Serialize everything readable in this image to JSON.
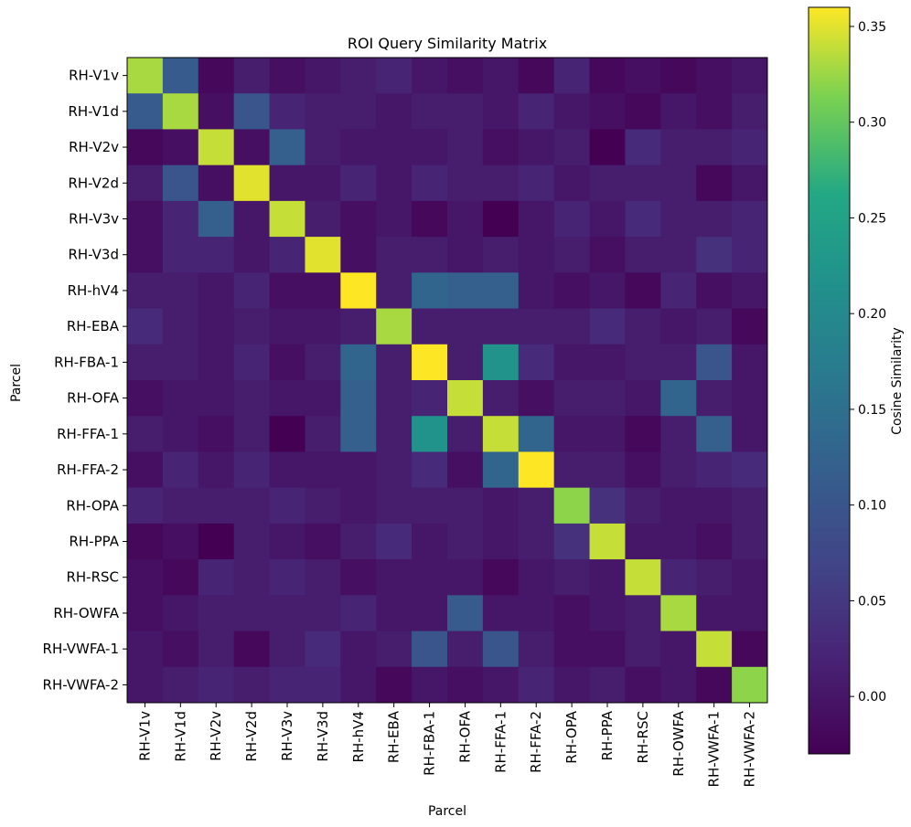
{
  "chart_data": {
    "type": "heatmap",
    "title": "ROI Query Similarity Matrix",
    "xlabel": "Parcel",
    "ylabel": "Parcel",
    "colorbar_label": "Cosine Similarity",
    "colormap": "viridis",
    "vmin": -0.03,
    "vmax": 0.36,
    "colorbar_ticks": [
      0.0,
      0.05,
      0.1,
      0.15,
      0.2,
      0.25,
      0.3,
      0.35
    ],
    "colorbar_tick_labels": [
      "0.00",
      "0.05",
      "0.10",
      "0.15",
      "0.20",
      "0.25",
      "0.30",
      "0.35"
    ],
    "labels": [
      "RH-V1v",
      "RH-V1d",
      "RH-V2v",
      "RH-V2d",
      "RH-V3v",
      "RH-V3d",
      "RH-hV4",
      "RH-EBA",
      "RH-FBA-1",
      "RH-OFA",
      "RH-FFA-1",
      "RH-FFA-2",
      "RH-OPA",
      "RH-PPA",
      "RH-RSC",
      "RH-OWFA",
      "RH-VWFA-1",
      "RH-VWFA-2"
    ],
    "matrix": [
      [
        0.33,
        0.11,
        -0.02,
        0.01,
        -0.01,
        0.0,
        0.01,
        0.02,
        0.0,
        -0.01,
        0.0,
        -0.02,
        0.02,
        -0.02,
        -0.01,
        -0.02,
        -0.01,
        0.0
      ],
      [
        0.11,
        0.33,
        -0.01,
        0.1,
        0.02,
        0.01,
        0.01,
        0.0,
        0.01,
        0.01,
        0.0,
        0.02,
        0.0,
        -0.01,
        -0.02,
        0.0,
        -0.01,
        0.01
      ],
      [
        -0.02,
        -0.01,
        0.34,
        -0.01,
        0.12,
        0.01,
        0.0,
        0.0,
        0.0,
        0.01,
        -0.01,
        0.0,
        0.01,
        -0.03,
        0.03,
        0.01,
        0.01,
        0.02
      ],
      [
        0.01,
        0.1,
        -0.01,
        0.35,
        0.0,
        0.0,
        0.02,
        0.0,
        0.02,
        0.01,
        0.01,
        0.02,
        0.0,
        0.01,
        0.01,
        0.01,
        -0.02,
        0.0
      ],
      [
        -0.01,
        0.02,
        0.12,
        0.0,
        0.34,
        0.01,
        -0.01,
        0.0,
        -0.02,
        0.0,
        -0.03,
        0.0,
        0.02,
        0.0,
        0.03,
        0.01,
        0.01,
        0.02
      ],
      [
        -0.01,
        0.02,
        0.02,
        0.0,
        0.02,
        0.35,
        -0.01,
        0.01,
        0.01,
        0.0,
        0.01,
        0.0,
        0.01,
        -0.01,
        0.01,
        0.01,
        0.04,
        0.02
      ],
      [
        0.01,
        0.01,
        0.0,
        0.02,
        -0.01,
        -0.01,
        0.36,
        0.01,
        0.13,
        0.12,
        0.12,
        0.0,
        -0.01,
        0.0,
        -0.02,
        0.02,
        -0.01,
        0.0
      ],
      [
        0.03,
        0.01,
        0.0,
        0.01,
        0.0,
        0.0,
        0.01,
        0.33,
        0.01,
        0.01,
        0.01,
        0.01,
        0.01,
        0.03,
        0.01,
        0.0,
        0.01,
        -0.02
      ],
      [
        0.01,
        0.01,
        0.0,
        0.02,
        -0.01,
        0.01,
        0.13,
        0.01,
        0.36,
        0.01,
        0.22,
        0.03,
        0.0,
        0.0,
        0.01,
        0.01,
        0.1,
        0.0
      ],
      [
        -0.01,
        0.0,
        0.0,
        0.01,
        0.0,
        0.0,
        0.12,
        0.01,
        0.02,
        0.34,
        0.01,
        -0.01,
        0.01,
        0.01,
        0.0,
        0.13,
        0.01,
        0.0
      ],
      [
        0.01,
        0.0,
        -0.01,
        0.01,
        -0.03,
        0.01,
        0.12,
        0.01,
        0.22,
        0.01,
        0.34,
        0.13,
        0.0,
        0.0,
        -0.02,
        0.01,
        0.12,
        0.0
      ],
      [
        -0.01,
        0.02,
        0.0,
        0.02,
        0.0,
        0.0,
        0.0,
        0.01,
        0.03,
        -0.01,
        0.13,
        0.36,
        0.01,
        0.01,
        -0.01,
        0.01,
        0.02,
        0.03
      ],
      [
        0.02,
        0.01,
        0.01,
        0.01,
        0.02,
        0.01,
        0.0,
        0.01,
        0.01,
        0.01,
        0.0,
        0.01,
        0.32,
        0.04,
        0.01,
        0.0,
        0.0,
        0.01
      ],
      [
        -0.02,
        -0.01,
        -0.03,
        0.01,
        0.0,
        -0.01,
        0.01,
        0.03,
        0.0,
        0.01,
        0.0,
        0.01,
        0.04,
        0.34,
        0.0,
        0.0,
        -0.01,
        0.01
      ],
      [
        -0.01,
        -0.02,
        0.02,
        0.01,
        0.02,
        0.01,
        -0.01,
        0.0,
        0.0,
        0.0,
        -0.02,
        0.0,
        0.01,
        0.0,
        0.34,
        0.02,
        0.01,
        0.0
      ],
      [
        -0.01,
        0.0,
        0.01,
        0.01,
        0.01,
        0.01,
        0.02,
        0.0,
        0.0,
        0.11,
        0.0,
        0.0,
        -0.01,
        0.0,
        0.01,
        0.33,
        0.0,
        0.0
      ],
      [
        0.0,
        -0.01,
        0.01,
        -0.02,
        0.01,
        0.03,
        0.0,
        0.01,
        0.1,
        0.01,
        0.1,
        0.01,
        -0.01,
        -0.01,
        0.01,
        0.0,
        0.34,
        -0.02
      ],
      [
        0.0,
        0.01,
        0.02,
        0.01,
        0.02,
        0.02,
        0.0,
        -0.02,
        0.0,
        -0.01,
        0.0,
        0.02,
        0.0,
        0.01,
        -0.01,
        0.0,
        -0.02,
        0.32
      ]
    ]
  }
}
